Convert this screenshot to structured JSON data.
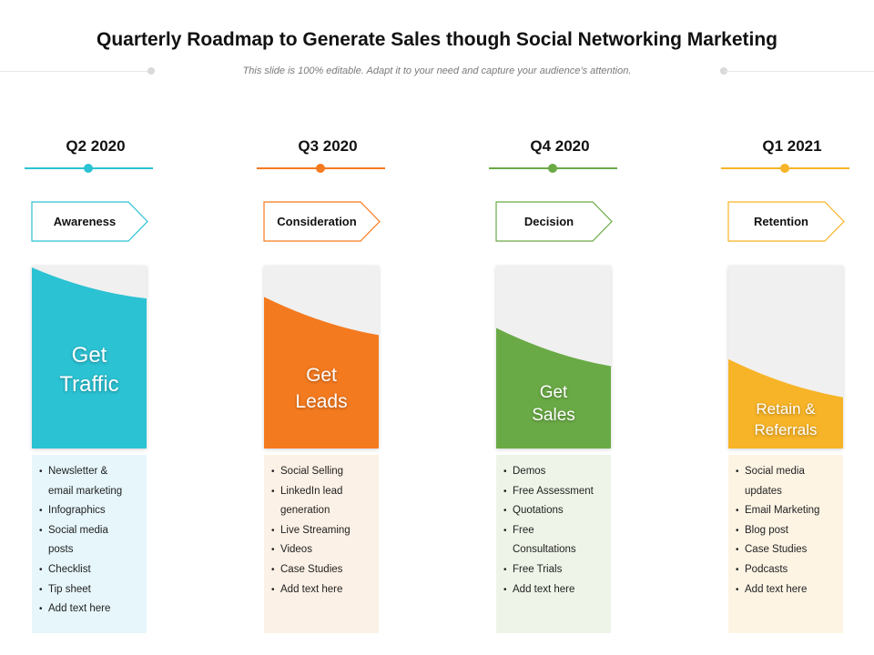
{
  "title": "Quarterly Roadmap to Generate Sales though Social Networking Marketing",
  "subtitle": "This slide is 100% editable. Adapt it to your need and capture your audience’s attention.",
  "columns": [
    {
      "quarter": "Q2 2020",
      "stage": "Awareness",
      "goal_line1": "Get",
      "goal_line2": "Traffic",
      "color": "#2bc2d3",
      "list_bg": "#e6f6fb",
      "fill_level": 0.82,
      "items": [
        "Newsletter &",
        "email marketing",
        "Infographics",
        "Social media",
        "posts",
        "Checklist",
        "Tip sheet",
        "Add text here"
      ],
      "bullets": [
        true,
        false,
        true,
        true,
        false,
        true,
        true,
        true
      ]
    },
    {
      "quarter": "Q3 2020",
      "stage": "Consideration",
      "goal_line1": "Get",
      "goal_line2": "Leads",
      "color": "#f47a1f",
      "list_bg": "#fcf1e6",
      "fill_level": 0.62,
      "items": [
        "Social Selling",
        "LinkedIn lead",
        "generation",
        "Live Streaming",
        "Videos",
        "Case Studies",
        "Add text here"
      ],
      "bullets": [
        true,
        true,
        false,
        true,
        true,
        true,
        true
      ]
    },
    {
      "quarter": "Q4 2020",
      "stage": "Decision",
      "goal_line1": "Get",
      "goal_line2": "Sales",
      "color": "#6aaa46",
      "list_bg": "#eef5e8",
      "fill_level": 0.45,
      "items": [
        "Demos",
        "Free Assessment",
        "Quotations",
        "Free",
        "Consultations",
        "Free Trials",
        "Add text here"
      ],
      "bullets": [
        true,
        true,
        true,
        true,
        false,
        true,
        true
      ]
    },
    {
      "quarter": "Q1 2021",
      "stage": "Retention",
      "goal_line1": "Retain &",
      "goal_line2": "Referrals",
      "color": "#f7b428",
      "list_bg": "#fdf4e4",
      "fill_level": 0.28,
      "items": [
        "Social media",
        "updates",
        "Email Marketing",
        "Blog post",
        "Case Studies",
        "Podcasts",
        "Add text here"
      ],
      "bullets": [
        true,
        false,
        true,
        true,
        true,
        true,
        true
      ]
    }
  ]
}
